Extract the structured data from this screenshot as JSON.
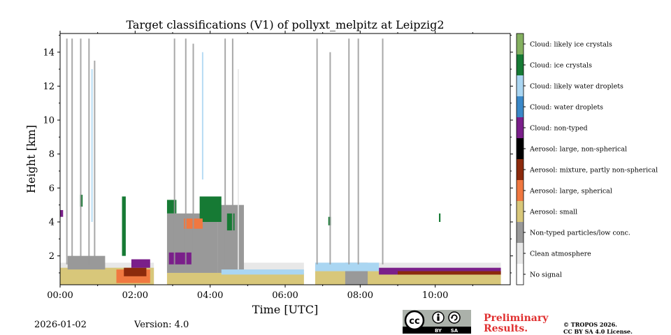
{
  "chart_data": {
    "type": "heatmap",
    "title": "Target classifications (V1) of pollyxt_melpitz at Leipzig2",
    "xlabel": "Time [UTC]",
    "ylabel": "Height [km]",
    "xlim": [
      0,
      12
    ],
    "ylim": [
      0.3,
      15.1
    ],
    "x_ticks": [
      {
        "value": 0,
        "label": "00:00"
      },
      {
        "value": 2,
        "label": "02:00"
      },
      {
        "value": 4,
        "label": "04:00"
      },
      {
        "value": 6,
        "label": "06:00"
      },
      {
        "value": 8,
        "label": "08:00"
      },
      {
        "value": 10,
        "label": "10:00"
      }
    ],
    "y_ticks": [
      {
        "value": 2,
        "label": "2"
      },
      {
        "value": 4,
        "label": "4"
      },
      {
        "value": 6,
        "label": "6"
      },
      {
        "value": 8,
        "label": "8"
      },
      {
        "value": 10,
        "label": "10"
      },
      {
        "value": 12,
        "label": "12"
      },
      {
        "value": 14,
        "label": "14"
      }
    ],
    "classes": [
      {
        "code": 0,
        "label": "No signal",
        "color": "#ffffff"
      },
      {
        "code": 1,
        "label": "Clean atmosphere",
        "color": "#e8e8e8"
      },
      {
        "code": 2,
        "label": "Non-typed particles/low conc.",
        "color": "#999999"
      },
      {
        "code": 3,
        "label": "Aerosol: small",
        "color": "#d8c77a"
      },
      {
        "code": 4,
        "label": "Aerosol: large, spherical",
        "color": "#f07840"
      },
      {
        "code": 5,
        "label": "Aerosol: mixture, partly non-spherical",
        "color": "#8c2a0c"
      },
      {
        "code": 6,
        "label": "Aerosol: large, non-spherical",
        "color": "#000000"
      },
      {
        "code": 7,
        "label": "Cloud: non-typed",
        "color": "#7a1f8a"
      },
      {
        "code": 8,
        "label": "Cloud: water droplets",
        "color": "#3a88c8"
      },
      {
        "code": 9,
        "label": "Cloud: likely water droplets",
        "color": "#aad6f2"
      },
      {
        "code": 10,
        "label": "Cloud: ice crystals",
        "color": "#167a34"
      },
      {
        "code": 11,
        "label": "Cloud: likely ice crystals",
        "color": "#84b060"
      }
    ],
    "data_periods": [
      {
        "start": 0.0,
        "end": 2.5
      },
      {
        "start": 2.85,
        "end": 6.5
      },
      {
        "start": 6.8,
        "end": 11.75
      }
    ],
    "regions": [
      {
        "class": 3,
        "t0": 0.0,
        "t1": 2.5,
        "h0": 0.3,
        "h1": 1.3
      },
      {
        "class": 2,
        "t0": 0.2,
        "t1": 1.2,
        "h0": 1.2,
        "h1": 2.0
      },
      {
        "class": 4,
        "t0": 1.5,
        "t1": 2.4,
        "h0": 0.4,
        "h1": 1.2
      },
      {
        "class": 5,
        "t0": 1.7,
        "t1": 2.3,
        "h0": 0.8,
        "h1": 1.3
      },
      {
        "class": 7,
        "t0": 1.9,
        "t1": 2.4,
        "h0": 1.3,
        "h1": 1.8
      },
      {
        "class": 10,
        "t0": 0.53,
        "t1": 0.6,
        "h0": 4.9,
        "h1": 5.6
      },
      {
        "class": 10,
        "t0": 1.65,
        "t1": 1.75,
        "h0": 2.0,
        "h1": 5.5
      },
      {
        "class": 7,
        "t0": 0.0,
        "t1": 0.08,
        "h0": 4.3,
        "h1": 4.7
      },
      {
        "class": 3,
        "t0": 2.85,
        "t1": 6.5,
        "h0": 0.3,
        "h1": 1.0
      },
      {
        "class": 2,
        "t0": 2.85,
        "t1": 4.2,
        "h0": 1.0,
        "h1": 4.5
      },
      {
        "class": 2,
        "t0": 4.2,
        "t1": 4.9,
        "h0": 1.0,
        "h1": 5.0
      },
      {
        "class": 9,
        "t0": 4.3,
        "t1": 6.5,
        "h0": 0.9,
        "h1": 1.2
      },
      {
        "class": 10,
        "t0": 3.72,
        "t1": 4.3,
        "h0": 4.0,
        "h1": 5.5
      },
      {
        "class": 10,
        "t0": 4.45,
        "t1": 4.65,
        "h0": 3.5,
        "h1": 4.5
      },
      {
        "class": 10,
        "t0": 2.85,
        "t1": 3.1,
        "h0": 4.5,
        "h1": 5.3
      },
      {
        "class": 7,
        "t0": 2.9,
        "t1": 3.5,
        "h0": 1.5,
        "h1": 2.2
      },
      {
        "class": 4,
        "t0": 3.3,
        "t1": 3.8,
        "h0": 3.6,
        "h1": 4.2
      },
      {
        "class": 3,
        "t0": 6.8,
        "t1": 11.75,
        "h0": 0.3,
        "h1": 1.1
      },
      {
        "class": 2,
        "t0": 7.6,
        "t1": 8.2,
        "h0": 0.3,
        "h1": 1.6
      },
      {
        "class": 9,
        "t0": 6.8,
        "t1": 8.5,
        "h0": 1.1,
        "h1": 1.6
      },
      {
        "class": 7,
        "t0": 8.5,
        "t1": 11.75,
        "h0": 0.9,
        "h1": 1.3
      },
      {
        "class": 5,
        "t0": 9.0,
        "t1": 11.75,
        "h0": 0.9,
        "h1": 1.1
      },
      {
        "class": 10,
        "t0": 7.15,
        "t1": 7.22,
        "h0": 3.8,
        "h1": 4.3
      },
      {
        "class": 10,
        "t0": 10.1,
        "t1": 10.14,
        "h0": 4.0,
        "h1": 4.5
      }
    ],
    "streaks": [
      {
        "class": 2,
        "t": 0.18,
        "h0": 1.5,
        "h1": 14.8
      },
      {
        "class": 2,
        "t": 0.32,
        "h0": 1.5,
        "h1": 14.8
      },
      {
        "class": 2,
        "t": 0.55,
        "h0": 1.5,
        "h1": 14.8
      },
      {
        "class": 2,
        "t": 0.77,
        "h0": 1.5,
        "h1": 14.8
      },
      {
        "class": 9,
        "t": 0.85,
        "h0": 4.0,
        "h1": 13.0
      },
      {
        "class": 2,
        "t": 0.92,
        "h0": 1.5,
        "h1": 13.5
      },
      {
        "class": 2,
        "t": 3.05,
        "h0": 1.5,
        "h1": 14.8
      },
      {
        "class": 2,
        "t": 3.35,
        "h0": 1.5,
        "h1": 14.8
      },
      {
        "class": 2,
        "t": 3.55,
        "h0": 1.5,
        "h1": 14.5
      },
      {
        "class": 9,
        "t": 3.8,
        "h0": 6.5,
        "h1": 14.0
      },
      {
        "class": 2,
        "t": 4.4,
        "h0": 1.5,
        "h1": 14.8
      },
      {
        "class": 2,
        "t": 4.6,
        "h0": 1.5,
        "h1": 14.8
      },
      {
        "class": 1,
        "t": 4.75,
        "h0": 1.2,
        "h1": 13.0
      },
      {
        "class": 2,
        "t": 6.85,
        "h0": 1.5,
        "h1": 14.8
      },
      {
        "class": 2,
        "t": 7.2,
        "h0": 1.5,
        "h1": 14.0
      },
      {
        "class": 2,
        "t": 7.7,
        "h0": 1.5,
        "h1": 14.8
      },
      {
        "class": 2,
        "t": 7.95,
        "h0": 1.5,
        "h1": 14.8
      },
      {
        "class": 2,
        "t": 8.6,
        "h0": 1.5,
        "h1": 14.8
      }
    ],
    "date": "2026-01-02",
    "version": "Version: 4.0"
  },
  "footer": {
    "preliminary_line1": "Preliminary",
    "preliminary_line2": "Results.",
    "preliminary_color": "#e03030",
    "copyright_line1": "© TROPOS 2026.",
    "copyright_line2": "CC BY SA 4.0 License.",
    "license_badge": {
      "cc": "cc",
      "by": "BY",
      "sa": "SA",
      "icon": "creative-commons-by-sa-icon"
    }
  }
}
